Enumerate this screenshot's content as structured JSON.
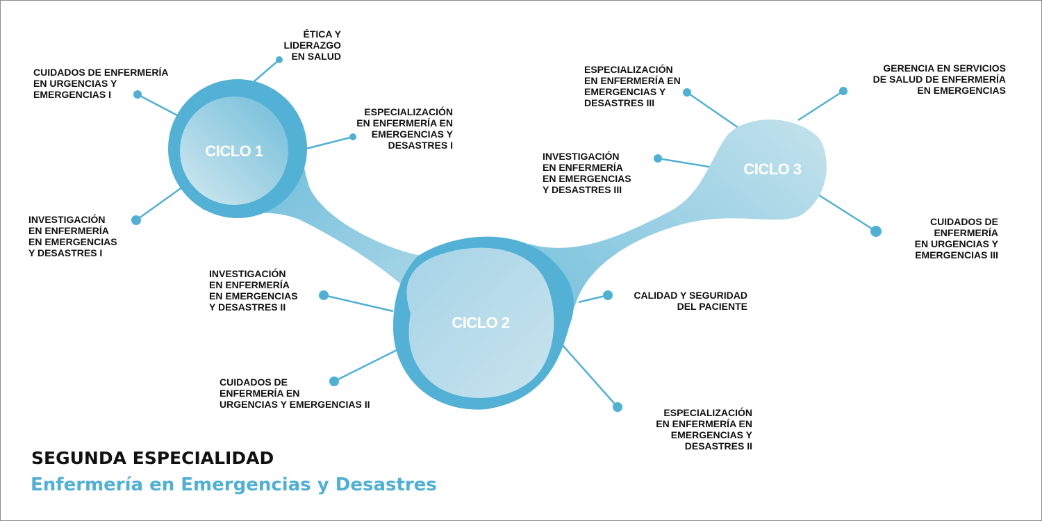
{
  "colors": {
    "accent": "#4fb0d4",
    "light": "#c0e0ec",
    "text": "#111111"
  },
  "title": "SEGUNDA ESPECIALIDAD",
  "subtitle": "Enfermería en Emergencias y Desastres",
  "cycles": [
    {
      "label": "CICLO 1"
    },
    {
      "label": "CICLO 2"
    },
    {
      "label": "CICLO 3"
    }
  ],
  "courses": [
    {
      "cycle": "CICLO 1",
      "lines": [
        "ÉTICA Y",
        "LIDERAZGO",
        "EN SALUD"
      ]
    },
    {
      "cycle": "CICLO 1",
      "lines": [
        "CUIDADOS DE ENFERMERÍA",
        "EN URGENCIAS Y",
        "EMERGENCIAS I"
      ]
    },
    {
      "cycle": "CICLO 1",
      "lines": [
        "ESPECIALIZACIÓN",
        "EN ENFERMERÍA EN",
        "EMERGENCIAS Y",
        "DESASTRES I"
      ]
    },
    {
      "cycle": "CICLO 1",
      "lines": [
        "INVESTIGACIÓN",
        "EN ENFERMERÍA",
        "EN EMERGENCIAS",
        "Y DESASTRES I"
      ]
    },
    {
      "cycle": "CICLO 2",
      "lines": [
        "INVESTIGACIÓN",
        "EN ENFERMERÍA",
        "EN EMERGENCIAS",
        "Y DESASTRES II"
      ]
    },
    {
      "cycle": "CICLO 2",
      "lines": [
        "CUIDADOS DE",
        "ENFERMERÍA EN",
        "URGENCIAS Y EMERGENCIAS II"
      ]
    },
    {
      "cycle": "CICLO 2",
      "lines": [
        "CALIDAD Y SEGURIDAD",
        "DEL PACIENTE"
      ]
    },
    {
      "cycle": "CICLO 2",
      "lines": [
        "ESPECIALIZACIÓN",
        "EN ENFERMERÍA EN",
        "EMERGENCIAS Y",
        "DESASTRES II"
      ]
    },
    {
      "cycle": "CICLO 3",
      "lines": [
        "ESPECIALIZACIÓN",
        "EN ENFERMERÍA EN",
        "EMERGENCIAS Y",
        "DESASTRES III"
      ]
    },
    {
      "cycle": "CICLO 3",
      "lines": [
        "INVESTIGACIÓN",
        "EN ENFERMERÍA",
        "EN EMERGENCIAS",
        "Y DESASTRES III"
      ]
    },
    {
      "cycle": "CICLO 3",
      "lines": [
        "GERENCIA EN SERVICIOS",
        "DE SALUD DE ENFERMERÍA",
        "EN EMERGENCIAS"
      ]
    },
    {
      "cycle": "CICLO 3",
      "lines": [
        "CUIDADOS DE",
        "ENFERMERÍA",
        "EN URGENCIAS Y",
        "EMERGENCIAS III"
      ]
    }
  ]
}
